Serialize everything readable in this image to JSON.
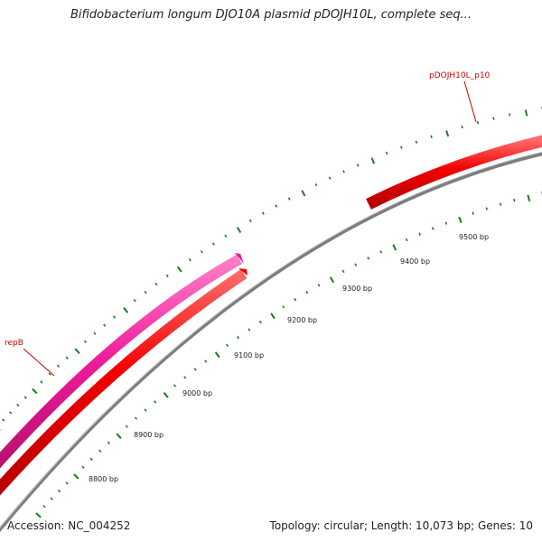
{
  "title": "Bifidobacterium longum DJO10A plasmid pDOJH10L, complete seq...",
  "footer": {
    "accession": "Accession: NC_004252",
    "summary": "Topology: circular; Length: 10,073 bp; Genes: 10"
  },
  "colors": {
    "backbone": "#8c8c8c",
    "gene_forward": "#ee0000",
    "gene_reverse": "#ee1a9a",
    "ticks": "#1e7a1e",
    "label_line": "#cc0000"
  },
  "genes": [
    {
      "name": "pDOJH10L_p10",
      "color": "#ee0000"
    },
    {
      "name": "repB",
      "color": "#cc0000"
    }
  ],
  "scale_labels": [
    "8800 bp",
    "8900 bp",
    "9000 bp",
    "9100 bp",
    "9200 bp",
    "9300 bp",
    "9400 bp",
    "9500 bp"
  ]
}
